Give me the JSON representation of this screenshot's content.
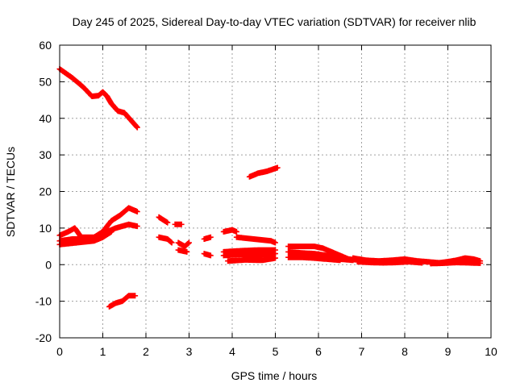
{
  "chart_data": {
    "type": "scatter",
    "title": "Day 245 of 2025, Sidereal Day-to-day VTEC variation (SDTVAR) for receiver nlib",
    "xlabel": "GPS time / hours",
    "ylabel": "SDTVAR / TECUs",
    "xlim": [
      0,
      10
    ],
    "ylim": [
      -20,
      60
    ],
    "xticks": [
      0,
      1,
      2,
      3,
      4,
      5,
      6,
      7,
      8,
      9,
      10
    ],
    "yticks": [
      -20,
      -10,
      0,
      10,
      20,
      30,
      40,
      50,
      60
    ],
    "grid": true,
    "marker_color": "#ff0000",
    "series": [
      {
        "name": "track-high-1",
        "points": [
          [
            0,
            53.5
          ],
          [
            0.3,
            51
          ],
          [
            0.55,
            48.5
          ],
          [
            0.75,
            46
          ],
          [
            0.9,
            46.2
          ],
          [
            1.0,
            47.2
          ],
          [
            1.1,
            46
          ],
          [
            1.2,
            44
          ],
          [
            1.35,
            42
          ],
          [
            1.5,
            41.5
          ],
          [
            1.65,
            39.5
          ],
          [
            1.8,
            37.5
          ]
        ]
      },
      {
        "name": "track-upper-2",
        "points": [
          [
            0,
            8
          ],
          [
            0.2,
            9
          ],
          [
            0.35,
            10
          ],
          [
            0.5,
            7.5
          ],
          [
            0.8,
            7.5
          ],
          [
            1.0,
            9
          ],
          [
            1.2,
            12
          ],
          [
            1.4,
            13.5
          ],
          [
            1.6,
            15.5
          ],
          [
            1.8,
            14.5
          ]
        ]
      },
      {
        "name": "track-upper-3",
        "points": [
          [
            0,
            6.5
          ],
          [
            0.3,
            7
          ],
          [
            0.7,
            7
          ],
          [
            1.0,
            8.5
          ],
          [
            1.3,
            10
          ],
          [
            1.6,
            11
          ],
          [
            1.8,
            10.5
          ]
        ]
      },
      {
        "name": "track-low-4",
        "points": [
          [
            0,
            5.5
          ],
          [
            0.4,
            6
          ],
          [
            0.8,
            6.5
          ],
          [
            1.0,
            7.5
          ],
          [
            1.2,
            9
          ]
        ]
      },
      {
        "name": "track-neg-5",
        "points": [
          [
            1.15,
            -11.5
          ],
          [
            1.3,
            -10.5
          ],
          [
            1.45,
            -10
          ],
          [
            1.6,
            -8.5
          ],
          [
            1.75,
            -8.5
          ]
        ]
      },
      {
        "name": "track-6",
        "points": [
          [
            2.3,
            13
          ],
          [
            2.5,
            11.5
          ]
        ]
      },
      {
        "name": "track-7",
        "points": [
          [
            2.75,
            11
          ]
        ]
      },
      {
        "name": "track-8",
        "points": [
          [
            2.3,
            7.5
          ],
          [
            2.5,
            7
          ],
          [
            2.6,
            6
          ]
        ]
      },
      {
        "name": "track-9",
        "points": [
          [
            2.75,
            6
          ],
          [
            2.9,
            5
          ],
          [
            3.0,
            6
          ]
        ]
      },
      {
        "name": "track-10",
        "points": [
          [
            2.75,
            4
          ],
          [
            2.95,
            3.5
          ]
        ]
      },
      {
        "name": "track-11",
        "points": [
          [
            3.35,
            7
          ],
          [
            3.5,
            7.5
          ]
        ]
      },
      {
        "name": "track-12",
        "points": [
          [
            3.35,
            3
          ],
          [
            3.5,
            2.5
          ]
        ]
      },
      {
        "name": "track-13",
        "points": [
          [
            3.8,
            9
          ],
          [
            4.0,
            9.5
          ],
          [
            4.1,
            9
          ]
        ]
      },
      {
        "name": "track-14",
        "points": [
          [
            3.8,
            3.5
          ],
          [
            4.2,
            3.8
          ],
          [
            4.6,
            4
          ],
          [
            5.0,
            4
          ]
        ]
      },
      {
        "name": "track-15",
        "points": [
          [
            3.8,
            2.5
          ],
          [
            4.2,
            2.8
          ],
          [
            4.6,
            2.6
          ],
          [
            5.0,
            3
          ]
        ]
      },
      {
        "name": "track-16",
        "points": [
          [
            3.9,
            1
          ],
          [
            4.3,
            1.3
          ],
          [
            4.7,
            1.2
          ],
          [
            5.0,
            1.8
          ]
        ]
      },
      {
        "name": "track-17",
        "points": [
          [
            4.1,
            7.5
          ],
          [
            4.5,
            7
          ],
          [
            4.9,
            6.5
          ],
          [
            5.0,
            6
          ]
        ]
      },
      {
        "name": "track-18",
        "points": [
          [
            4.4,
            24
          ],
          [
            4.6,
            25
          ],
          [
            4.8,
            25.5
          ],
          [
            5.05,
            26.5
          ]
        ]
      },
      {
        "name": "track-19",
        "points": [
          [
            5.3,
            5
          ],
          [
            5.6,
            5
          ],
          [
            5.9,
            5
          ],
          [
            6.1,
            4.5
          ],
          [
            6.4,
            3
          ],
          [
            6.7,
            1.5
          ],
          [
            7.0,
            1.2
          ]
        ]
      },
      {
        "name": "track-20",
        "points": [
          [
            5.3,
            3.5
          ],
          [
            5.6,
            3.2
          ],
          [
            5.9,
            3
          ],
          [
            6.2,
            2.5
          ],
          [
            6.5,
            1.5
          ],
          [
            6.8,
            1.2
          ]
        ]
      },
      {
        "name": "track-21",
        "points": [
          [
            5.3,
            2
          ],
          [
            5.6,
            2
          ],
          [
            5.9,
            1.8
          ],
          [
            6.2,
            1.5
          ],
          [
            6.5,
            1.2
          ]
        ]
      },
      {
        "name": "track-22",
        "points": [
          [
            6.8,
            1.8
          ],
          [
            7.1,
            1.2
          ],
          [
            7.4,
            1
          ],
          [
            7.7,
            1.2
          ],
          [
            8.0,
            1.5
          ],
          [
            8.3,
            1
          ],
          [
            8.5,
            0.8
          ]
        ]
      },
      {
        "name": "track-23",
        "points": [
          [
            6.9,
            0.8
          ],
          [
            7.2,
            0.6
          ],
          [
            7.5,
            0.5
          ],
          [
            7.8,
            0.6
          ],
          [
            8.1,
            0.8
          ],
          [
            8.4,
            0.5
          ]
        ]
      },
      {
        "name": "track-24",
        "points": [
          [
            8.5,
            0.8
          ],
          [
            8.8,
            0.5
          ],
          [
            9.0,
            0.8
          ],
          [
            9.2,
            1.2
          ],
          [
            9.4,
            1.8
          ],
          [
            9.6,
            1.5
          ],
          [
            9.75,
            1
          ]
        ]
      },
      {
        "name": "track-25",
        "points": [
          [
            8.6,
            0.3
          ],
          [
            8.9,
            0.4
          ],
          [
            9.2,
            0.6
          ],
          [
            9.5,
            0.5
          ],
          [
            9.75,
            0.4
          ]
        ]
      }
    ]
  }
}
